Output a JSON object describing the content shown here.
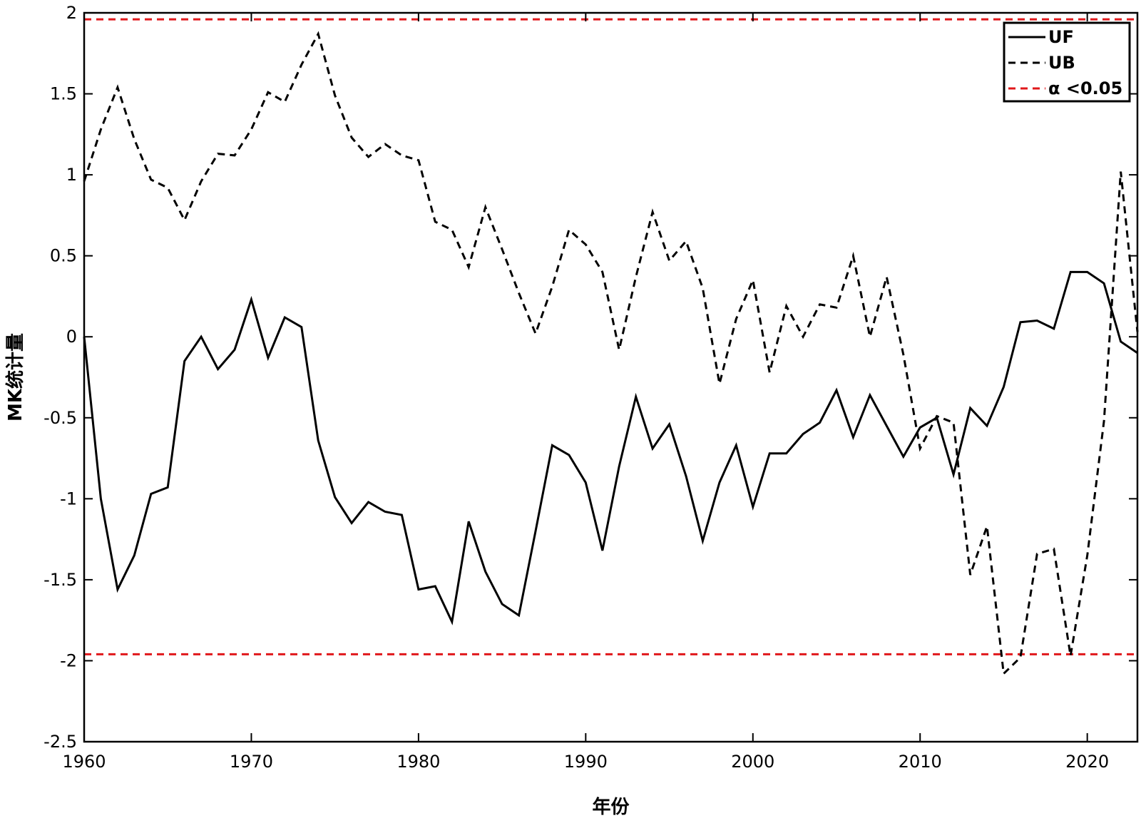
{
  "chart_data": {
    "type": "line",
    "title": "",
    "xlabel": "年份",
    "ylabel": "MK统计量",
    "xlim": [
      1960,
      2023
    ],
    "ylim": [
      -2.5,
      2
    ],
    "x_ticks": [
      1960,
      1970,
      1980,
      1990,
      2000,
      2010,
      2020
    ],
    "y_ticks": [
      2,
      1.5,
      1,
      0.5,
      0,
      -0.5,
      -1,
      -1.5,
      -2,
      -2.5
    ],
    "y_tick_labels": [
      "2",
      "1.5",
      "1",
      "0.5",
      "0",
      "-0.5",
      "-1",
      "-1.5",
      "-2",
      "-2.5"
    ],
    "legend_position": "top-right",
    "grid": false,
    "series": [
      {
        "name": "UF",
        "color": "#000000",
        "dash": "solid",
        "x": [
          1960,
          1961,
          1962,
          1963,
          1964,
          1965,
          1966,
          1967,
          1968,
          1969,
          1970,
          1971,
          1972,
          1973,
          1974,
          1975,
          1976,
          1977,
          1978,
          1979,
          1980,
          1981,
          1982,
          1983,
          1984,
          1985,
          1986,
          1987,
          1988,
          1989,
          1990,
          1991,
          1992,
          1993,
          1994,
          1995,
          1996,
          1997,
          1998,
          1999,
          2000,
          2001,
          2002,
          2003,
          2004,
          2005,
          2006,
          2007,
          2008,
          2009,
          2010,
          2011,
          2012,
          2013,
          2014,
          2015,
          2016,
          2017,
          2018,
          2019,
          2020,
          2021,
          2022,
          2023
        ],
        "values": [
          0,
          -1.0,
          -1.56,
          -1.35,
          -0.97,
          -0.93,
          -0.15,
          0.0,
          -0.2,
          -0.08,
          0.23,
          -0.13,
          0.12,
          0.06,
          -0.64,
          -0.99,
          -1.15,
          -1.02,
          -1.08,
          -1.1,
          -1.56,
          -1.54,
          -1.76,
          -1.14,
          -1.45,
          -1.65,
          -1.72,
          -1.2,
          -0.67,
          -0.73,
          -0.9,
          -1.32,
          -0.8,
          -0.37,
          -0.69,
          -0.54,
          -0.86,
          -1.26,
          -0.9,
          -0.67,
          -1.05,
          -0.72,
          -0.72,
          -0.6,
          -0.53,
          -0.33,
          -0.62,
          -0.36,
          -0.55,
          -0.74,
          -0.56,
          -0.5,
          -0.85,
          -0.44,
          -0.55,
          -0.31,
          0.09,
          0.1,
          0.05,
          0.4,
          0.4,
          0.33,
          -0.03,
          -0.1
        ]
      },
      {
        "name": "UB",
        "color": "#000000",
        "dash": "dashed",
        "x": [
          1960,
          1961,
          1962,
          1963,
          1964,
          1965,
          1966,
          1967,
          1968,
          1969,
          1970,
          1971,
          1972,
          1973,
          1974,
          1975,
          1976,
          1977,
          1978,
          1979,
          1980,
          1981,
          1982,
          1983,
          1984,
          1985,
          1986,
          1987,
          1988,
          1989,
          1990,
          1991,
          1992,
          1993,
          1994,
          1995,
          1996,
          1997,
          1998,
          1999,
          2000,
          2001,
          2002,
          2003,
          2004,
          2005,
          2006,
          2007,
          2008,
          2009,
          2010,
          2011,
          2012,
          2013,
          2014,
          2015,
          2016,
          2017,
          2018,
          2019,
          2020,
          2021,
          2022,
          2023
        ],
        "values": [
          0.96,
          1.28,
          1.54,
          1.22,
          0.97,
          0.92,
          0.72,
          0.96,
          1.13,
          1.12,
          1.28,
          1.51,
          1.45,
          1.68,
          1.87,
          1.49,
          1.23,
          1.11,
          1.19,
          1.12,
          1.09,
          0.71,
          0.66,
          0.43,
          0.8,
          0.54,
          0.27,
          0.02,
          0.31,
          0.66,
          0.57,
          0.4,
          -0.08,
          0.37,
          0.77,
          0.47,
          0.59,
          0.3,
          -0.29,
          0.11,
          0.35,
          -0.22,
          0.19,
          0.0,
          0.2,
          0.18,
          0.5,
          0.0,
          0.37,
          -0.11,
          -0.69,
          -0.49,
          -0.53,
          -1.47,
          -1.17,
          -2.08,
          -1.98,
          -1.34,
          -1.31,
          -1.97,
          -1.35,
          -0.52,
          1.02,
          0.03
        ]
      },
      {
        "name": "α <0.05",
        "color": "#e0181b",
        "dash": "dashed",
        "threshold_values": [
          1.96,
          -1.96
        ]
      }
    ]
  }
}
